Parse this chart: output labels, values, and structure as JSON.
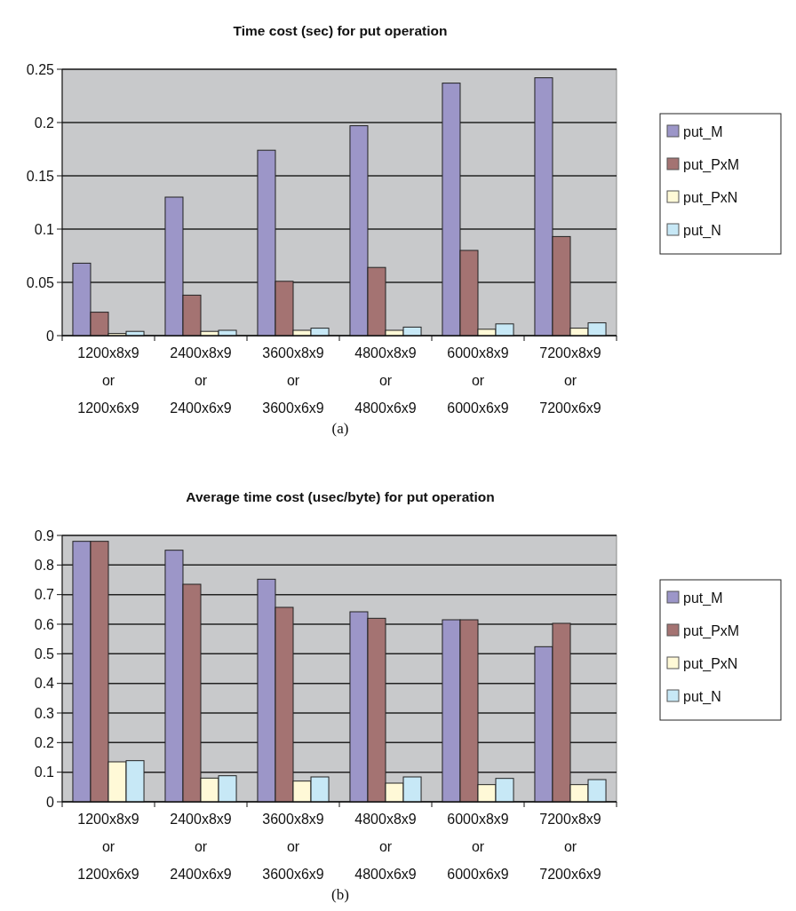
{
  "chart_data": [
    {
      "type": "bar",
      "title": "Time cost (sec) for put operation",
      "categories": [
        "1200x8x9 or 1200x6x9",
        "2400x8x9 or 2400x6x9",
        "3600x8x9 or 3600x6x9",
        "4800x8x9 or 4800x6x9",
        "6000x8x9 or 6000x6x9",
        "7200x8x9 or 7200x6x9"
      ],
      "series": [
        {
          "name": "put_M",
          "color": "#9c96c8",
          "values": [
            0.068,
            0.13,
            0.174,
            0.197,
            0.237,
            0.242
          ]
        },
        {
          "name": "put_PxM",
          "color": "#a47372",
          "values": [
            0.022,
            0.038,
            0.051,
            0.064,
            0.08,
            0.093
          ]
        },
        {
          "name": "put_PxN",
          "color": "#fff9d7",
          "values": [
            0.002,
            0.004,
            0.005,
            0.005,
            0.006,
            0.007
          ]
        },
        {
          "name": "put_N",
          "color": "#c7e8f6",
          "values": [
            0.004,
            0.005,
            0.007,
            0.008,
            0.011,
            0.012
          ]
        }
      ],
      "ylim": [
        0,
        0.25
      ],
      "yticks": [
        0,
        0.05,
        0.1,
        0.15,
        0.2,
        0.25
      ],
      "grid": "y",
      "legend": "right",
      "annotations": [
        "(a)"
      ]
    },
    {
      "type": "bar",
      "title": "Average time cost (usec/byte) for put operation",
      "categories": [
        "1200x8x9 or 1200x6x9",
        "2400x8x9 or 2400x6x9",
        "3600x8x9 or 3600x6x9",
        "4800x8x9 or 4800x6x9",
        "6000x8x9 or 6000x6x9",
        "7200x8x9 or 7200x6x9"
      ],
      "series": [
        {
          "name": "put_M",
          "color": "#9c96c8",
          "values": [
            0.88,
            0.85,
            0.752,
            0.642,
            0.615,
            0.524
          ]
        },
        {
          "name": "put_PxM",
          "color": "#a47372",
          "values": [
            0.88,
            0.735,
            0.657,
            0.62,
            0.615,
            0.603
          ]
        },
        {
          "name": "put_PxN",
          "color": "#fff9d7",
          "values": [
            0.135,
            0.08,
            0.07,
            0.063,
            0.058,
            0.058
          ]
        },
        {
          "name": "put_N",
          "color": "#c7e8f6",
          "values": [
            0.139,
            0.088,
            0.084,
            0.084,
            0.079,
            0.075
          ]
        }
      ],
      "ylim": [
        0,
        0.9
      ],
      "yticks": [
        0,
        0.1,
        0.2,
        0.3,
        0.4,
        0.5,
        0.6,
        0.7,
        0.8,
        0.9
      ],
      "grid": "y",
      "legend": "right",
      "annotations": [
        "(b)"
      ]
    }
  ]
}
